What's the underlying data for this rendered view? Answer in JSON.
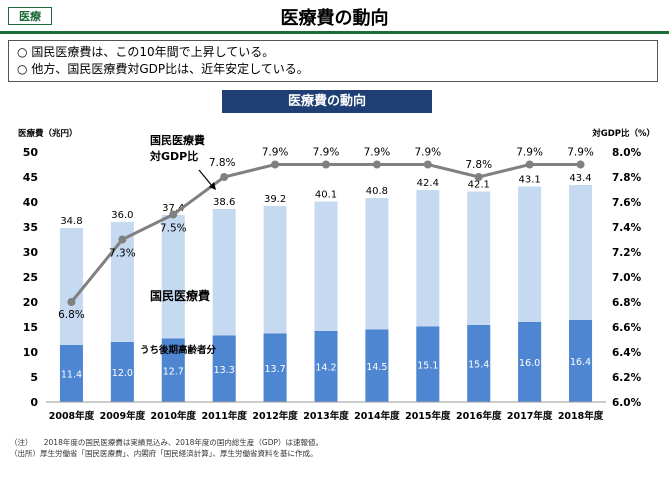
{
  "header": {
    "tag": "医療",
    "title": "医療費の動向"
  },
  "summary": {
    "bullet": "○",
    "lines": [
      "国民医療費は、この10年間で上昇している。",
      "他方、国民医療費対GDP比は、近年安定している。"
    ]
  },
  "banner": "医療費の動向",
  "colors": {
    "bar_total": "#c5d9f1",
    "bar_elderly": "#4f86d2",
    "ratio_line": "#808080",
    "banner_bg": "#1f3f74",
    "header_accent": "#1e6b3a"
  },
  "chart_data": {
    "type": "bar",
    "categories": [
      "2008年度",
      "2009年度",
      "2010年度",
      "2011年度",
      "2012年度",
      "2013年度",
      "2014年度",
      "2015年度",
      "2016年度",
      "2017年度",
      "2018年度"
    ],
    "series": [
      {
        "name": "国民医療費",
        "values": [
          34.8,
          36.0,
          37.4,
          38.6,
          39.2,
          40.1,
          40.8,
          42.4,
          42.1,
          43.1,
          43.4
        ]
      },
      {
        "name": "うち後期高齢者分",
        "values": [
          11.4,
          12.0,
          12.7,
          13.3,
          13.7,
          14.2,
          14.5,
          15.1,
          15.4,
          16.0,
          16.4
        ]
      },
      {
        "name": "国民医療費対GDP比",
        "values": [
          6.8,
          7.3,
          7.5,
          7.8,
          7.9,
          7.9,
          7.9,
          7.9,
          7.8,
          7.9,
          7.9
        ]
      }
    ],
    "ratio_labels": [
      "6.8%",
      "7.3%",
      "7.5%",
      "7.8%",
      "7.9%",
      "7.9%",
      "7.9%",
      "7.9%",
      "7.8%",
      "7.9%",
      "7.9%"
    ],
    "series_labels": {
      "total": "国民医療費",
      "elderly": "うち後期高齢者分",
      "ratio": [
        "国民医療費",
        "対GDP比"
      ]
    },
    "ylabel_left": "医療費（兆円）",
    "ylabel_right": "対GDP比（%）",
    "ylim_left": [
      0,
      50
    ],
    "yticks_left": [
      "0",
      "5",
      "10",
      "15",
      "20",
      "25",
      "30",
      "35",
      "40",
      "45",
      "50"
    ],
    "ylim_right": [
      6.0,
      8.0
    ],
    "yticks_right": [
      "6.0%",
      "6.2%",
      "6.4%",
      "6.6%",
      "6.8%",
      "7.0%",
      "7.2%",
      "7.4%",
      "7.6%",
      "7.8%",
      "8.0%"
    ],
    "grid": false
  },
  "notes": [
    "（注）　　2018年度の国民医療費は実績見込み、2018年度の国内総生産（GDP）は速報値。",
    "（出所）厚生労働省「国民医療費」、内閣府「国民経済計算」、厚生労働省資料を基に作成。"
  ]
}
